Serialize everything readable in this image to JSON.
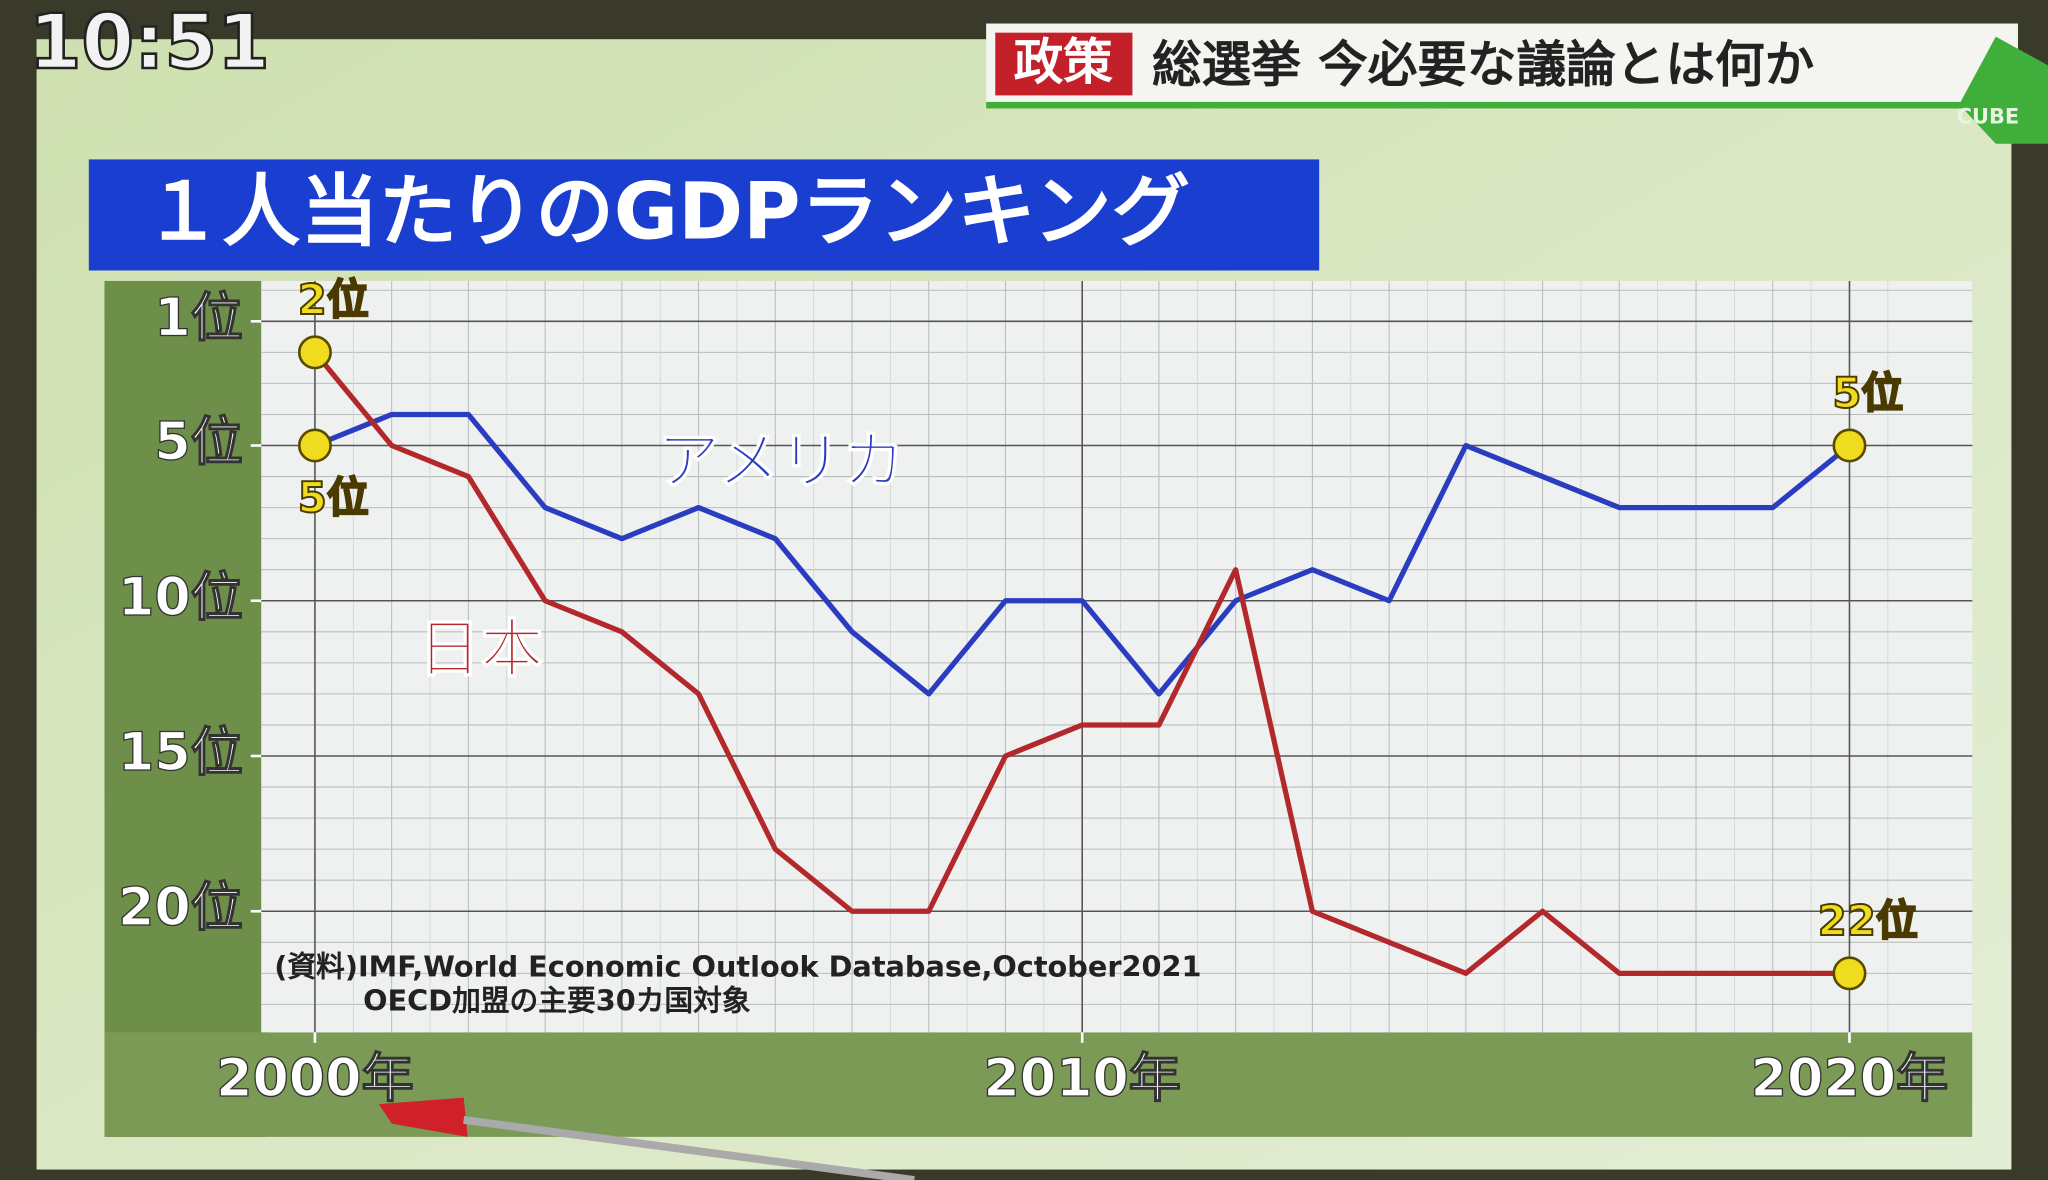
{
  "clock": "10:51",
  "banner": {
    "tag": "政策",
    "headline": "総選挙 今必要な議論とは何か",
    "logo": "CUBE"
  },
  "chart_data": {
    "type": "line",
    "title": "１人当たりのGDPランキング",
    "x": [
      2000,
      2001,
      2002,
      2003,
      2004,
      2005,
      2006,
      2007,
      2008,
      2009,
      2010,
      2011,
      2012,
      2013,
      2014,
      2015,
      2016,
      2017,
      2018,
      2019,
      2020
    ],
    "xlim": [
      1999.3,
      2021.6
    ],
    "xticks": [
      {
        "value": 2000,
        "label": "2000年"
      },
      {
        "value": 2010,
        "label": "2010年"
      },
      {
        "value": 2020,
        "label": "2020年"
      }
    ],
    "ylim": [
      23.9,
      -0.3
    ],
    "yticks": [
      {
        "value": 1,
        "label": "1位"
      },
      {
        "value": 5,
        "label": "5位"
      },
      {
        "value": 10,
        "label": "10位"
      },
      {
        "value": 15,
        "label": "15位"
      },
      {
        "value": 20,
        "label": "20位"
      }
    ],
    "grid": true,
    "series": [
      {
        "name": "アメリカ",
        "color": "#2a3cc0",
        "values": [
          5,
          4,
          4,
          7,
          8,
          7,
          8,
          11,
          13,
          10,
          10,
          13,
          10,
          9,
          10,
          5,
          6,
          7,
          7,
          7,
          5
        ],
        "value_labels": [
          "5位",
          null,
          null,
          null,
          null,
          null,
          null,
          null,
          null,
          null,
          null,
          null,
          null,
          null,
          null,
          null,
          null,
          null,
          null,
          null,
          "5位"
        ]
      },
      {
        "name": "日本",
        "color": "#b3282b",
        "values": [
          2,
          5,
          6,
          10,
          11,
          13,
          18,
          20,
          20,
          15,
          14,
          14,
          9,
          20,
          21,
          22,
          20,
          22,
          22,
          22,
          22
        ],
        "value_labels": [
          "2位",
          null,
          null,
          null,
          null,
          null,
          null,
          null,
          null,
          null,
          null,
          null,
          null,
          null,
          null,
          null,
          null,
          null,
          null,
          null,
          "22位"
        ]
      }
    ],
    "source": [
      "(資料)IMF,World Economic Outlook Database,October2021",
      "OECD加盟の主要30カ国対象"
    ]
  }
}
